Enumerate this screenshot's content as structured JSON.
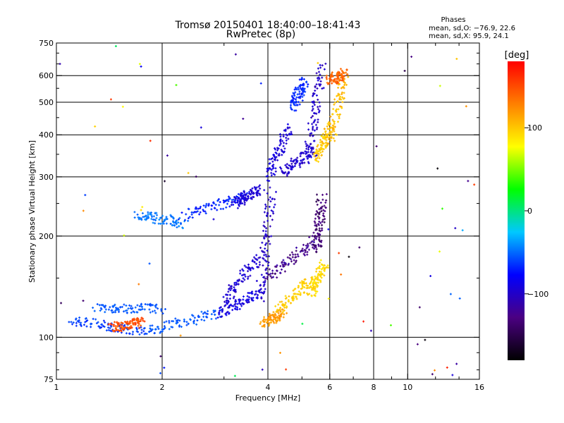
{
  "chart_data": {
    "type": "scatter",
    "title": "Tromsø 20150401 18:40:00–18:41:43",
    "subtitle": "RwPretec (8p)",
    "xlabel": "Frequency [MHz]",
    "ylabel": "Stationary phase Virtual Height [km]",
    "x_scale": "log",
    "y_scale": "log",
    "xlim": [
      1,
      16
    ],
    "ylim": [
      75,
      750
    ],
    "x_ticks": [
      1,
      2,
      4,
      6,
      8,
      10,
      16
    ],
    "x_tick_labels": [
      "1",
      "2",
      "4",
      "6",
      "8",
      "10",
      "16"
    ],
    "y_ticks": [
      75,
      100,
      200,
      300,
      400,
      500,
      600,
      750
    ],
    "y_tick_labels": [
      "75",
      "100",
      "200",
      "300",
      "400",
      "500",
      "600",
      "750"
    ],
    "grid": true,
    "phase_stats": {
      "title": "Phases",
      "line_o": "mean, sd,O: −76.9, 22.6",
      "line_x": "mean, sd,X:  95.9, 24.1"
    },
    "colorbar": {
      "unit": "[deg]",
      "range": [
        -180,
        180
      ],
      "ticks": [
        100,
        0,
        -100
      ],
      "tick_labels": [
        "100",
        "0",
        "−100"
      ],
      "colors": [
        "#000000",
        "#4b0082",
        "#0000ff",
        "#00c8ff",
        "#00ff00",
        "#ffff00",
        "#ff8000",
        "#ff0000"
      ]
    },
    "series": [
      {
        "segments": [
          {
            "f": [
              1.1,
              1.8
            ],
            "h": [
              112,
              104
            ],
            "phase": [
              -70,
              -55
            ]
          },
          {
            "f": [
              1.8,
              2.9
            ],
            "h": [
              104,
              118
            ],
            "phase": [
              -60,
              -50
            ]
          },
          {
            "f": [
              1.3,
              2.0
            ],
            "h": [
              123,
              121
            ],
            "phase": [
              -60,
              -50
            ]
          },
          {
            "f": [
              2.9,
              3.8
            ],
            "h": [
              118,
              135
            ],
            "phase": [
              -100,
              -80
            ]
          },
          {
            "f": [
              3.0,
              3.8
            ],
            "h": [
              128,
              175
            ],
            "phase": [
              -105,
              -85
            ]
          },
          {
            "f": [
              3.8,
              4.1
            ],
            "h": [
              130,
              270
            ],
            "phase": [
              -110,
              -90
            ]
          },
          {
            "f": [
              4.0,
              5.5
            ],
            "h": [
              150,
              195
            ],
            "phase": [
              -140,
              -110
            ]
          },
          {
            "f": [
              5.5,
              5.7
            ],
            "h": [
              180,
              260
            ],
            "phase": [
              -150,
              -120
            ]
          },
          {
            "f": [
              1.7,
              2.3
            ],
            "h": [
              232,
              218
            ],
            "phase": [
              -55,
              -40
            ]
          },
          {
            "f": [
              2.3,
              3.5
            ],
            "h": [
              230,
              265
            ],
            "phase": [
              -80,
              -60
            ]
          },
          {
            "f": [
              3.2,
              3.8
            ],
            "h": [
              250,
              275
            ],
            "phase": [
              -100,
              -90
            ]
          },
          {
            "f": [
              4.0,
              4.6
            ],
            "h": [
              300,
              420
            ],
            "phase": [
              -100,
              -85
            ]
          },
          {
            "f": [
              4.4,
              5.4
            ],
            "h": [
              310,
              360
            ],
            "phase": [
              -105,
              -90
            ]
          },
          {
            "f": [
              5.2,
              5.7
            ],
            "h": [
              340,
              640
            ],
            "phase": [
              -110,
              -90
            ]
          },
          {
            "f": [
              4.7,
              5.1
            ],
            "h": [
              480,
              580
            ],
            "phase": [
              -75,
              -60
            ]
          }
        ]
      },
      {
        "segments": [
          {
            "f": [
              1.45,
              1.75
            ],
            "h": [
              107,
              111
            ],
            "phase": [
              140,
              160
            ]
          },
          {
            "f": [
              3.9,
              4.4
            ],
            "h": [
              110,
              118
            ],
            "phase": [
              110,
              125
            ]
          },
          {
            "f": [
              4.3,
              5.3
            ],
            "h": [
              120,
              150
            ],
            "phase": [
              90,
              105
            ]
          },
          {
            "f": [
              5.3,
              5.8
            ],
            "h": [
              135,
              165
            ],
            "phase": [
              85,
              100
            ]
          },
          {
            "f": [
              5.5,
              6.0
            ],
            "h": [
              340,
              420
            ],
            "phase": [
              90,
              110
            ]
          },
          {
            "f": [
              6.0,
              6.6
            ],
            "h": [
              380,
              600
            ],
            "phase": [
              95,
              115
            ]
          },
          {
            "f": [
              6.0,
              6.6
            ],
            "h": [
              580,
              610
            ],
            "phase": [
              130,
              150
            ]
          }
        ]
      }
    ]
  }
}
